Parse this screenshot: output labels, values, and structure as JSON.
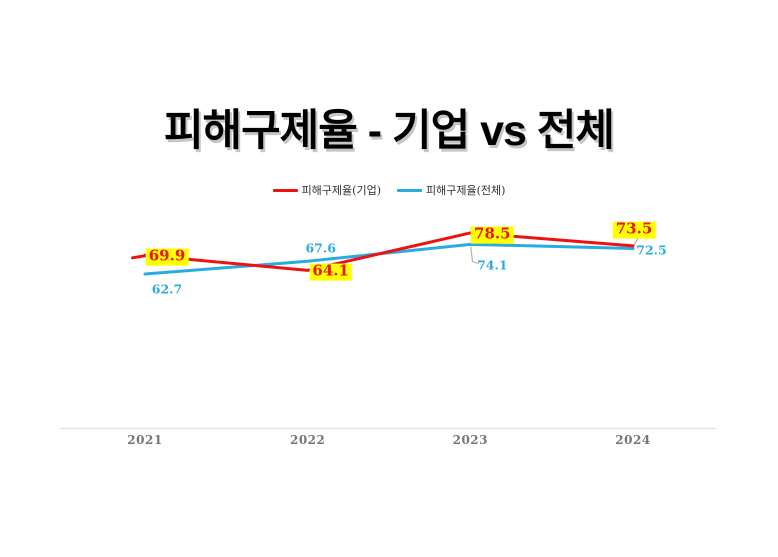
{
  "title": "피해구제율 - 기업 vs 전체",
  "legend": {
    "items": [
      {
        "label": "피해구제율(기업)",
        "color": "#ee1111"
      },
      {
        "label": "피해구제율(전체)",
        "color": "#29abe2"
      }
    ]
  },
  "chart_data": {
    "type": "line",
    "title": "피해구제율 - 기업 vs 전체",
    "categories": [
      "2021",
      "2022",
      "2023",
      "2024"
    ],
    "series": [
      {
        "name": "피해구제율(기업)",
        "color": "#ee1111",
        "values": [
          69.9,
          64.1,
          78.5,
          73.5
        ],
        "data_labels": [
          "69.9",
          "64.1",
          "78.5",
          "73.5"
        ],
        "label_highlight": "#ffff00"
      },
      {
        "name": "피해구제율(전체)",
        "color": "#29abe2",
        "values": [
          62.7,
          67.6,
          74.1,
          72.5
        ],
        "data_labels": [
          "62.7",
          "67.6",
          "74.1",
          "72.5"
        ],
        "label_highlight": null
      }
    ],
    "xlabel": "",
    "ylabel": "",
    "grid": false,
    "legend_position": "top-center",
    "axis_line_color": "#e3e3e3",
    "tick_label_color": "#767676",
    "leader_line_color": "#b3b3b3"
  }
}
